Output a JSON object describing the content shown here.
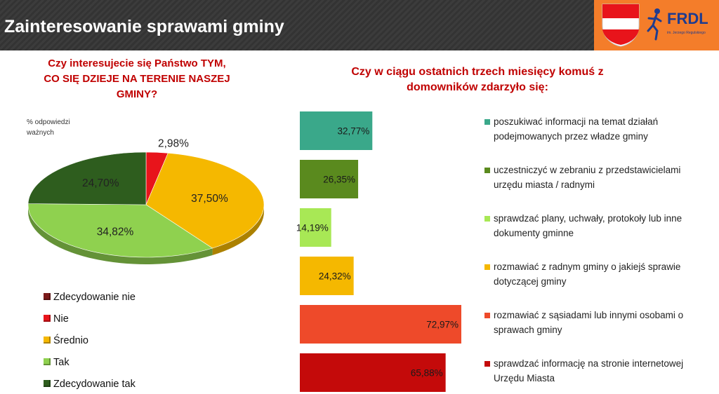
{
  "header": {
    "title": "Zainteresowanie sprawami gminy",
    "logo_text": "FRDL",
    "logo_subtext": "im. Jerzego Regulskiego"
  },
  "left": {
    "question_lines": [
      "Czy interesujecie się Państwo TYM,",
      "CO SIĘ DZIEJE NA TERENIE NASZEJ",
      "GMINY?"
    ],
    "note_lines": [
      "% odpowiedzi",
      "ważnych"
    ]
  },
  "right": {
    "question_lines": [
      "Czy w ciągu ostatnich trzech miesięcy komuś z",
      "domowników zdarzyło się:"
    ]
  },
  "chart_data": [
    {
      "type": "pie",
      "title": "Czy interesujecie się Państwo TYM, CO SIĘ DZIEJE NA TERENIE NASZEJ GMINY?",
      "note": "% odpowiedzi ważnych",
      "categories": [
        "Zdecydowanie nie",
        "Nie",
        "Średnio",
        "Tak",
        "Zdecydowanie tak"
      ],
      "values": [
        0,
        2.98,
        37.5,
        34.82,
        24.7
      ],
      "labels": [
        "",
        "2,98%",
        "37,50%",
        "34,82%",
        "24,70%"
      ],
      "colors": [
        "#7b1a1a",
        "#e8141b",
        "#f5b800",
        "#8fd14f",
        "#2e5d1e"
      ],
      "legend": "bottom-left"
    },
    {
      "type": "bar",
      "orientation": "horizontal",
      "title": "Czy w ciągu ostatnich trzech miesięcy komuś z domowników zdarzyło się:",
      "categories": [
        "poszukiwać informacji na temat działań podejmowanych przez władze gminy",
        "uczestniczyć w zebraniu z przedstawicielami urzędu miasta / radnymi",
        "sprawdzać plany, uchwały, protokoły lub inne dokumenty gminne",
        "rozmawiać z radnym gminy o jakiejś sprawie dotyczącej gminy",
        "rozmawiać z sąsiadami lub innymi osobami o sprawach gminy",
        "sprawdzać informację na stronie internetowej Urzędu Miasta"
      ],
      "legend_lines": [
        [
          "poszukiwać informacji na temat działań",
          "podejmowanych przez władze gminy"
        ],
        [
          "uczestniczyć w zebraniu z przedstawicielami",
          "urzędu miasta / radnymi"
        ],
        [
          "sprawdzać plany, uchwały, protokoły lub inne",
          "dokumenty gminne"
        ],
        [
          "rozmawiać z radnym gminy o jakiejś sprawie",
          "dotyczącej gminy"
        ],
        [
          "rozmawiać z sąsiadami lub innymi osobami o",
          "sprawach gminy"
        ],
        [
          "sprawdzać informację na stronie internetowej",
          "Urzędu Miasta"
        ]
      ],
      "values": [
        32.77,
        26.35,
        14.19,
        24.32,
        72.97,
        65.88
      ],
      "labels": [
        "32,77%",
        "26,35%",
        "14,19%",
        "24,32%",
        "72,97%",
        "65,88%"
      ],
      "colors": [
        "#3aa88a",
        "#5a8a1e",
        "#a8e855",
        "#f5b800",
        "#ee4a2a",
        "#c40a0a"
      ],
      "xlim": [
        0,
        75
      ],
      "legend": "right"
    }
  ]
}
